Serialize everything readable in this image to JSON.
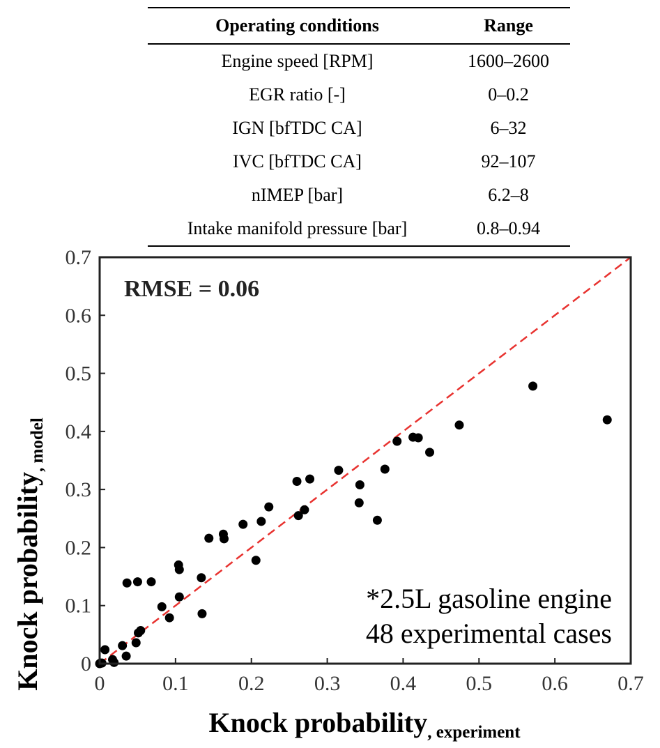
{
  "table": {
    "headers": [
      "Operating conditions",
      "Range"
    ],
    "rows": [
      [
        "Engine speed [RPM]",
        "1600–2600"
      ],
      [
        "EGR ratio [-]",
        "0–0.2"
      ],
      [
        "IGN [bfTDC CA]",
        "6–32"
      ],
      [
        "IVC [bfTDC CA]",
        "92–107"
      ],
      [
        "nIMEP [bar]",
        "6.2–8"
      ],
      [
        "Intake manifold pressure [bar]",
        "0.8–0.94"
      ]
    ]
  },
  "chart_data": {
    "type": "scatter",
    "xlabel": "Knock probability",
    "xlabel_subscript": ", experiment",
    "ylabel": "Knock probability",
    "ylabel_subscript": ", model",
    "xlim": [
      0,
      0.7
    ],
    "ylim": [
      0,
      0.7
    ],
    "x_ticks": [
      "0",
      "0.1",
      "0.2",
      "0.3",
      "0.4",
      "0.5",
      "0.6",
      "0.7"
    ],
    "y_ticks": [
      "0",
      "0.1",
      "0.2",
      "0.3",
      "0.4",
      "0.5",
      "0.6",
      "0.7"
    ],
    "grid": false,
    "annotations": {
      "rmse": "RMSE = 0.06",
      "note_line1": "*2.5L gasoline engine",
      "note_line2": "48 experimental cases"
    },
    "reference_line": {
      "type": "y=x",
      "style": "dashed",
      "color": "#e8322f"
    },
    "marker_color": "#000000",
    "points": [
      {
        "x": 0.0,
        "y": 0.0
      },
      {
        "x": 0.001,
        "y": 0.001
      },
      {
        "x": 0.003,
        "y": 0.001
      },
      {
        "x": 0.007,
        "y": 0.024
      },
      {
        "x": 0.017,
        "y": 0.007
      },
      {
        "x": 0.019,
        "y": 0.002
      },
      {
        "x": 0.03,
        "y": 0.031
      },
      {
        "x": 0.035,
        "y": 0.013
      },
      {
        "x": 0.036,
        "y": 0.139
      },
      {
        "x": 0.048,
        "y": 0.036
      },
      {
        "x": 0.05,
        "y": 0.141
      },
      {
        "x": 0.051,
        "y": 0.053
      },
      {
        "x": 0.054,
        "y": 0.057
      },
      {
        "x": 0.068,
        "y": 0.141
      },
      {
        "x": 0.082,
        "y": 0.098
      },
      {
        "x": 0.092,
        "y": 0.079
      },
      {
        "x": 0.104,
        "y": 0.17
      },
      {
        "x": 0.105,
        "y": 0.162
      },
      {
        "x": 0.105,
        "y": 0.115
      },
      {
        "x": 0.134,
        "y": 0.148
      },
      {
        "x": 0.135,
        "y": 0.086
      },
      {
        "x": 0.144,
        "y": 0.216
      },
      {
        "x": 0.163,
        "y": 0.223
      },
      {
        "x": 0.164,
        "y": 0.215
      },
      {
        "x": 0.189,
        "y": 0.24
      },
      {
        "x": 0.206,
        "y": 0.178
      },
      {
        "x": 0.213,
        "y": 0.245
      },
      {
        "x": 0.223,
        "y": 0.27
      },
      {
        "x": 0.26,
        "y": 0.314
      },
      {
        "x": 0.262,
        "y": 0.255
      },
      {
        "x": 0.27,
        "y": 0.265
      },
      {
        "x": 0.277,
        "y": 0.318
      },
      {
        "x": 0.315,
        "y": 0.333
      },
      {
        "x": 0.342,
        "y": 0.277
      },
      {
        "x": 0.343,
        "y": 0.308
      },
      {
        "x": 0.366,
        "y": 0.247
      },
      {
        "x": 0.376,
        "y": 0.335
      },
      {
        "x": 0.392,
        "y": 0.383
      },
      {
        "x": 0.413,
        "y": 0.39
      },
      {
        "x": 0.42,
        "y": 0.389
      },
      {
        "x": 0.435,
        "y": 0.364
      },
      {
        "x": 0.474,
        "y": 0.411
      },
      {
        "x": 0.571,
        "y": 0.478
      },
      {
        "x": 0.669,
        "y": 0.42
      }
    ]
  }
}
